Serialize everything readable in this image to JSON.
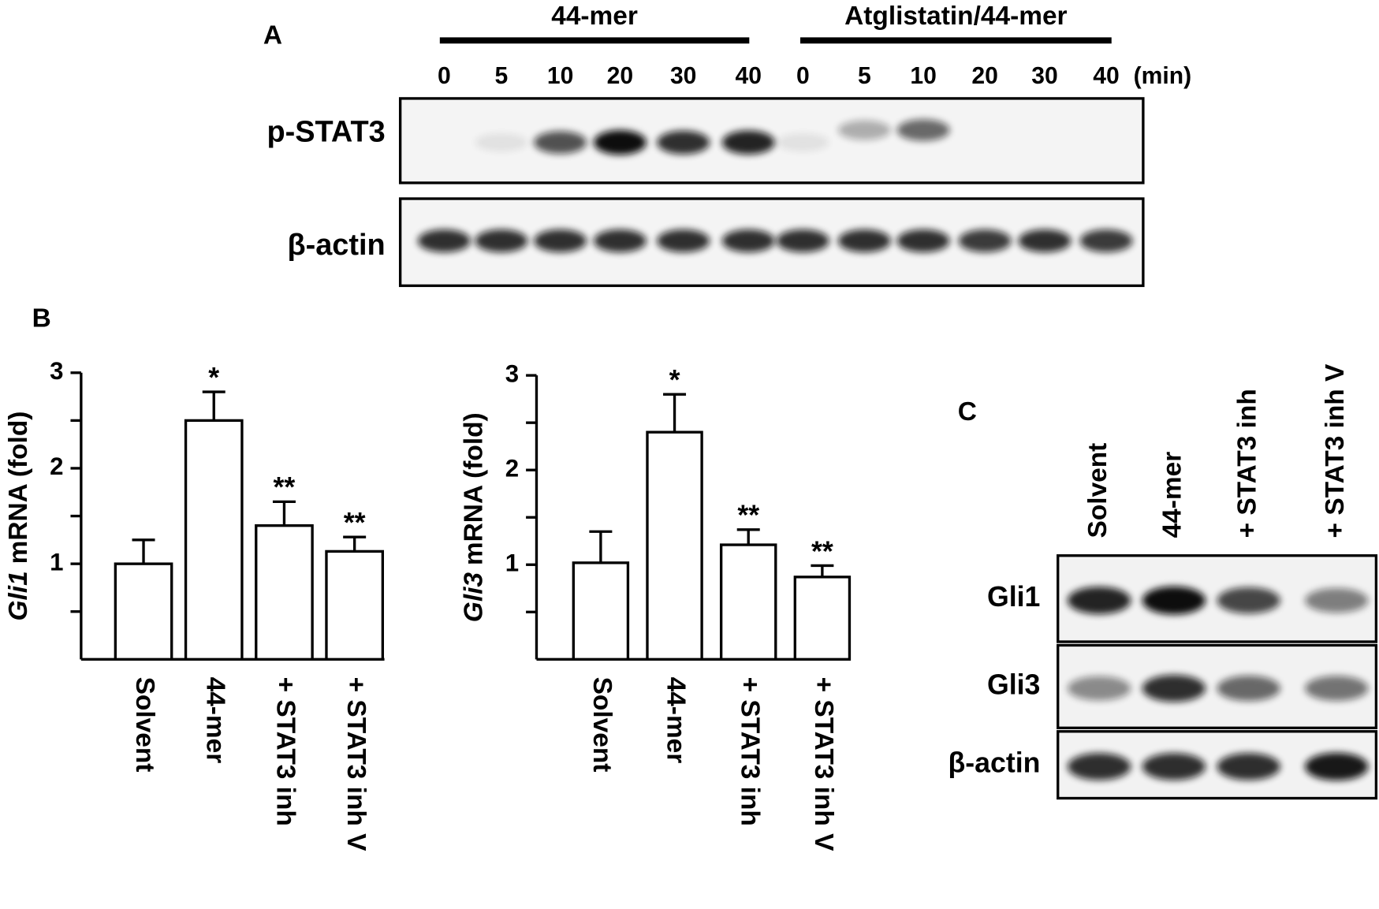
{
  "panel_a": {
    "label": "A",
    "groups": [
      "44-mer",
      "Atglistatin/44-mer"
    ],
    "times": [
      [
        "0",
        "5",
        "10",
        "20",
        "30",
        "40"
      ],
      [
        "0",
        "5",
        "10",
        "20",
        "30",
        "40"
      ]
    ],
    "time_unit": "(min)",
    "rows": [
      "p-STAT3",
      "β-actin"
    ]
  },
  "panel_b": {
    "label": "B"
  },
  "chart_data": [
    {
      "type": "bar",
      "y_label": {
        "gene": "Gli1",
        "rest": "mRNA (fold)"
      },
      "categories": [
        "Solvent",
        "44-mer",
        "+ STAT3 inh",
        "+ STAT3 inh V"
      ],
      "values": [
        1.0,
        2.5,
        1.4,
        1.13
      ],
      "errors": [
        0.25,
        0.3,
        0.25,
        0.15
      ],
      "annotations": [
        null,
        "*",
        "**",
        "**"
      ],
      "color": "#ffffff",
      "ylim": [
        0,
        3
      ],
      "yticks": [
        1,
        2,
        3
      ],
      "minor_yticks": [
        0.5,
        1.5,
        2.5
      ]
    },
    {
      "type": "bar",
      "y_label": {
        "gene": "Gli3",
        "rest": "mRNA (fold)"
      },
      "categories": [
        "Solvent",
        "44-mer",
        "+ STAT3 inh",
        "+ STAT3 inh V"
      ],
      "values": [
        1.02,
        2.4,
        1.21,
        0.87
      ],
      "errors": [
        0.33,
        0.4,
        0.16,
        0.12
      ],
      "annotations": [
        null,
        "*",
        "**",
        "**"
      ],
      "color": "#ffffff",
      "ylim": [
        0,
        3
      ],
      "yticks": [
        1,
        2,
        3
      ],
      "minor_yticks": [
        0.5,
        1.5,
        2.5
      ]
    }
  ],
  "panel_c": {
    "label": "C",
    "columns": [
      "Solvent",
      "44-mer",
      "+ STAT3 inh",
      "+ STAT3 inh V"
    ],
    "rows": [
      "Gli1",
      "Gli3",
      "β-actin"
    ]
  }
}
